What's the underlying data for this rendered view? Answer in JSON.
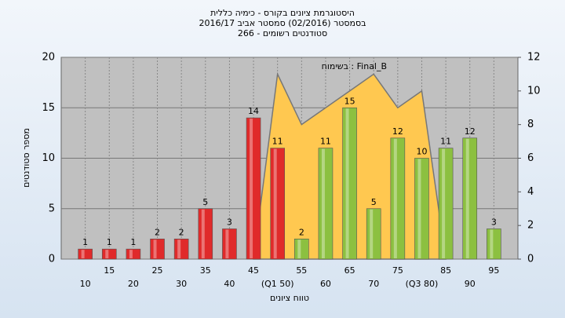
{
  "chart_data": {
    "type": "bar",
    "title": [
      "היסטוגרמת ציונים בקורס - כימיה כללית",
      "בסמסטר  (02/2016)  סמסטר אביב 2016/17",
      "סטודנטים רשומים - 266"
    ],
    "x_label": "טווח ציונים",
    "y_label": "מספר סטודנטים",
    "categories": [
      "10",
      "15",
      "20",
      "25",
      "30",
      "35",
      "40",
      "45",
      "(Q1 50)",
      "55",
      "60",
      "65",
      "70",
      "75",
      "(Q3 80)",
      "85",
      "90",
      "95"
    ],
    "series": [
      {
        "name": "ציונים",
        "values": [
          1,
          1,
          1,
          2,
          2,
          5,
          3,
          14,
          11,
          2,
          11,
          15,
          5,
          12,
          10,
          11,
          12,
          3
        ],
        "colors": [
          "#e02a2a",
          "#e02a2a",
          "#e02a2a",
          "#e02a2a",
          "#e02a2a",
          "#e02a2a",
          "#e02a2a",
          "#e02a2a",
          "#e02a2a",
          "#8cc040",
          "#8cc040",
          "#8cc040",
          "#8cc040",
          "#8cc040",
          "#8cc040",
          "#8cc040",
          "#8cc040",
          "#8cc040"
        ]
      },
      {
        "name": "Final_B : בשימוח",
        "axis": "y2",
        "type": "area",
        "color": "#ffc850",
        "values": [
          null,
          null,
          null,
          null,
          null,
          null,
          null,
          0,
          11,
          8,
          9,
          10,
          11,
          9,
          10,
          0,
          null,
          null
        ]
      }
    ],
    "ylim": [
      0,
      20
    ],
    "yticks": [
      0,
      5,
      10,
      15,
      20
    ],
    "y2lim": [
      0,
      12
    ],
    "y2ticks": [
      0,
      2,
      4,
      6,
      8,
      10,
      12
    ],
    "grid": true
  }
}
